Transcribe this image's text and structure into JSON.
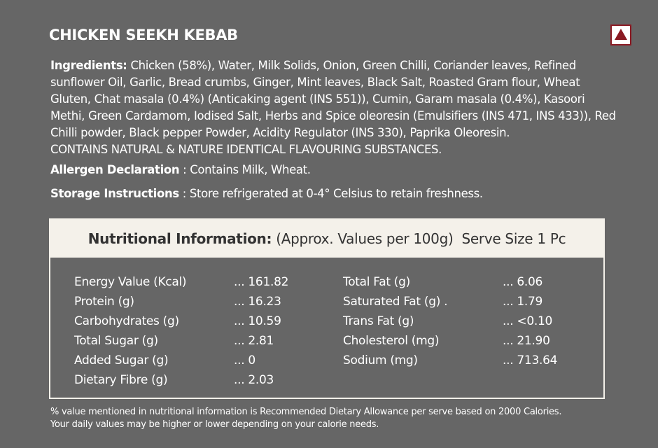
{
  "product": {
    "title": "CHICKEN SEEKH KEBAB"
  },
  "nonveg_icon": {
    "name": "non-veg-symbol-icon",
    "color": "#8b1a23"
  },
  "ingredients": {
    "label": "Ingredients:",
    "text": " Chicken (58%), Water, Milk Solids, Onion, Green Chilli, Coriander leaves, Refined sunflower Oil, Garlic, Bread crumbs, Ginger, Mint leaves, Black Salt, Roasted Gram flour, Wheat Gluten, Chat masala (0.4%) (Anticaking agent (INS 551)), Cumin, Garam masala (0.4%), Kasoori Methi, Green Cardamom, Iodised Salt, Herbs and Spice oleoresin (Emulsifiers (INS 471, INS 433)), Red Chilli powder, Black pepper Powder, Acidity Regulator (INS 330), Paprika Oleoresin.",
    "contains": "CONTAINS NATURAL & NATURE IDENTICAL FLAVOURING SUBSTANCES."
  },
  "allergen": {
    "label": "Allergen Declaration",
    "text": " : Contains Milk, Wheat."
  },
  "storage": {
    "label": "Storage Instructions",
    "text": " : Store refrigerated at 0-4° Celsius to retain freshness."
  },
  "nutrition": {
    "heading": "Nutritional Information:",
    "per": "(Approx. Values per 100g)",
    "serve": "Serve Size 1 Pc",
    "left": [
      {
        "name": "Energy Value (Kcal)",
        "value": "... 161.82"
      },
      {
        "name": "Protein (g)",
        "value": "... 16.23"
      },
      {
        "name": "Carbohydrates (g)",
        "value": "... 10.59"
      },
      {
        "name": "Total Sugar (g)",
        "value": "... 2.81"
      },
      {
        "name": "Added Sugar (g)",
        "value": "... 0"
      },
      {
        "name": "Dietary Fibre (g)",
        "value": "... 2.03"
      }
    ],
    "right": [
      {
        "name": "Total Fat (g)",
        "value": "... 6.06"
      },
      {
        "name": "Saturated Fat (g)  .",
        "value": "... 1.79"
      },
      {
        "name": "Trans Fat (g)",
        "value": "... <0.10"
      },
      {
        "name": "Cholesterol (mg)",
        "value": "... 21.90"
      },
      {
        "name": "Sodium (mg)",
        "value": "... 713.64"
      }
    ]
  },
  "footnote": {
    "line1": "% value mentioned in nutritional information is Recommended Dietary Allowance per serve based on 2000 Calories.",
    "line2": "Your daily values may be higher or lower depending on your calorie needs."
  }
}
